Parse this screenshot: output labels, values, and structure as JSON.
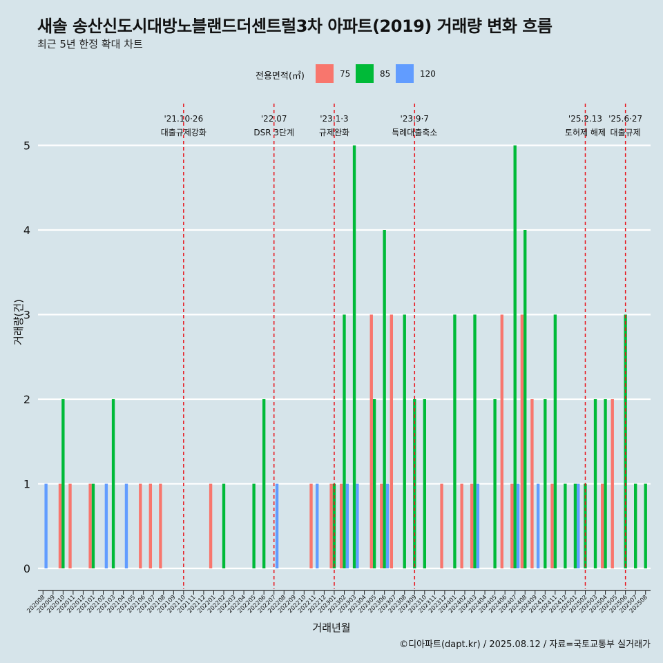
{
  "header": {
    "title": "새솔 송산신도시대방노블랜드더센트럴3차 아파트(2019) 거래량 변화 흐름",
    "subtitle": "최근 5년 한정 확대 차트"
  },
  "legend": {
    "title": "전용면적(㎡)",
    "items": [
      {
        "label": "75",
        "color": "#f8766d"
      },
      {
        "label": "85",
        "color": "#00ba38"
      },
      {
        "label": "120",
        "color": "#619cff"
      }
    ]
  },
  "caption": "©디아파트(dapt.kr) / 2025.08.12 / 자료=국토교통부 실거래가",
  "colors": {
    "background": "#d6e4ea",
    "grid": "#ffffff",
    "event_line": "#e8141c"
  },
  "chart_data": {
    "type": "bar",
    "xlabel": "거래년월",
    "ylabel": "거래량(건)",
    "ylim": [
      0,
      5
    ],
    "yticks": [
      0,
      1,
      2,
      3,
      4,
      5
    ],
    "categories": [
      "202008",
      "202009",
      "202010",
      "202011",
      "202012",
      "202101",
      "202102",
      "202103",
      "202104",
      "202105",
      "202106",
      "202107",
      "202108",
      "202109",
      "202110",
      "202111",
      "202112",
      "202201",
      "202202",
      "202203",
      "202204",
      "202205",
      "202206",
      "202207",
      "202208",
      "202209",
      "202210",
      "202211",
      "202212",
      "202301",
      "202302",
      "202303",
      "202304",
      "202305",
      "202306",
      "202307",
      "202308",
      "202309",
      "202310",
      "202311",
      "202312",
      "202401",
      "202402",
      "202403",
      "202404",
      "202405",
      "202406",
      "202407",
      "202408",
      "202409",
      "202410",
      "202411",
      "202412",
      "202501",
      "202502",
      "202503",
      "202504",
      "202505",
      "202506",
      "202507",
      "202508"
    ],
    "series": [
      {
        "name": "75",
        "color": "#f8766d",
        "values": [
          0,
          0,
          1,
          1,
          0,
          1,
          0,
          0,
          0,
          0,
          1,
          1,
          1,
          0,
          0,
          0,
          0,
          1,
          0,
          0,
          0,
          0,
          0,
          0,
          0,
          0,
          0,
          1,
          0,
          1,
          1,
          0,
          0,
          3,
          1,
          3,
          0,
          0,
          0,
          0,
          1,
          0,
          1,
          1,
          0,
          0,
          3,
          1,
          3,
          2,
          0,
          1,
          0,
          0,
          0,
          0,
          1,
          2,
          0,
          0,
          0
        ]
      },
      {
        "name": "85",
        "color": "#00ba38",
        "values": [
          0,
          0,
          2,
          0,
          0,
          1,
          0,
          2,
          0,
          0,
          0,
          0,
          0,
          0,
          0,
          0,
          0,
          0,
          1,
          0,
          0,
          1,
          2,
          0,
          0,
          0,
          0,
          0,
          0,
          1,
          3,
          5,
          0,
          2,
          4,
          0,
          3,
          2,
          2,
          0,
          0,
          3,
          0,
          3,
          0,
          2,
          0,
          5,
          4,
          0,
          2,
          3,
          1,
          1,
          1,
          2,
          2,
          0,
          3,
          1,
          1
        ]
      },
      {
        "name": "120",
        "color": "#619cff",
        "values": [
          1,
          0,
          0,
          0,
          0,
          0,
          1,
          0,
          1,
          0,
          0,
          0,
          0,
          0,
          0,
          0,
          0,
          0,
          0,
          0,
          0,
          0,
          0,
          1,
          0,
          0,
          0,
          1,
          0,
          0,
          1,
          1,
          0,
          0,
          1,
          0,
          0,
          0,
          0,
          0,
          0,
          0,
          0,
          1,
          0,
          0,
          0,
          1,
          0,
          1,
          0,
          0,
          0,
          1,
          0,
          0,
          0,
          0,
          0,
          0,
          0
        ]
      }
    ],
    "events": [
      {
        "date": "202110",
        "label_top": "'21.10·26",
        "label_bottom": "대출규제강화"
      },
      {
        "date": "202207",
        "label_top": "'22.07",
        "label_bottom": "DSR 3단계"
      },
      {
        "date": "202301",
        "label_top": "'23.1·3",
        "label_bottom": "규제완화"
      },
      {
        "date": "202309",
        "label_top": "'23.9·7",
        "label_bottom": "특례대출축소"
      },
      {
        "date": "202502",
        "label_top": "'25.2.13",
        "label_bottom": "토허제 해제"
      },
      {
        "date": "202506",
        "label_top": "'25.6·27",
        "label_bottom": "대출규제"
      }
    ]
  }
}
